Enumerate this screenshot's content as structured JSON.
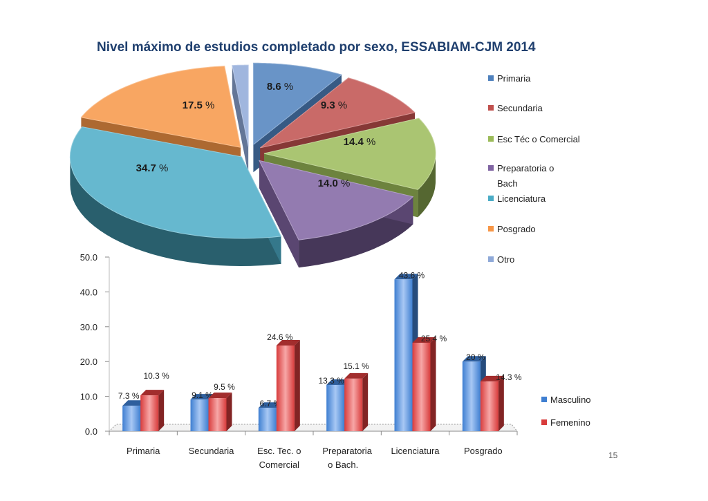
{
  "page_number": "15",
  "colors": {
    "title": "#1f3f6e",
    "masculino": "#5b9bd5",
    "femenino": "#e05a5a"
  },
  "chart_data": [
    {
      "type": "pie",
      "title": "Nivel máximo de estudios completado por sexo, ESSABIAM-CJM 2014",
      "legend_position": "right",
      "slices": [
        {
          "name": "Primaria",
          "value": 8.6,
          "label": "8.6 %",
          "color": "#4f81bd"
        },
        {
          "name": "Secundaria",
          "value": 9.3,
          "label": "9.3 %",
          "color": "#c0504d"
        },
        {
          "name": "Esc Téc o Comercial",
          "value": 14.4,
          "label": "14.4 %",
          "color": "#9bbb59"
        },
        {
          "name": "Preparatoria o Bach",
          "value": 14.0,
          "label": "14.0 %",
          "color": "#8064a2"
        },
        {
          "name": "Licenciatura",
          "value": 34.7,
          "label": "34.7 %",
          "color": "#4bacc6"
        },
        {
          "name": "Posgrado",
          "value": 17.5,
          "label": "17.5 %",
          "color": "#f79646"
        },
        {
          "name": "Otro",
          "value": 1.5,
          "label": "",
          "color": "#8fa9d8"
        }
      ]
    },
    {
      "type": "bar",
      "categories": [
        "Primaria",
        "Secundaria",
        "Esc. Tec. o Comercial",
        "Preparatoria o Bach.",
        "Licenciatura",
        "Posgrado"
      ],
      "category_lines": [
        [
          "Primaria"
        ],
        [
          "Secundaria"
        ],
        [
          "Esc. Tec. o",
          "Comercial"
        ],
        [
          "Preparatoria",
          "o Bach."
        ],
        [
          "Licenciatura"
        ],
        [
          "Posgrado"
        ]
      ],
      "series": [
        {
          "name": "Masculino",
          "values": [
            7.3,
            9.1,
            6.7,
            13.3,
            43.6,
            20.0
          ],
          "labels": [
            "7.3 %",
            "9.1 %",
            "6.7 %",
            "13.3 %",
            "43.6 %",
            "20 %"
          ]
        },
        {
          "name": "Femenino",
          "values": [
            10.3,
            9.5,
            24.6,
            15.1,
            25.4,
            14.3
          ],
          "labels": [
            "10.3 %",
            "9.5 %",
            "24.6 %",
            "15.1 %",
            "25.4 %",
            "14.3 %"
          ]
        }
      ],
      "ylim": [
        0,
        50
      ],
      "yticks": [
        "0.0",
        "10.0",
        "20.0",
        "30.0",
        "40.0",
        "50.0"
      ],
      "legend_position": "right",
      "grid": false
    }
  ]
}
